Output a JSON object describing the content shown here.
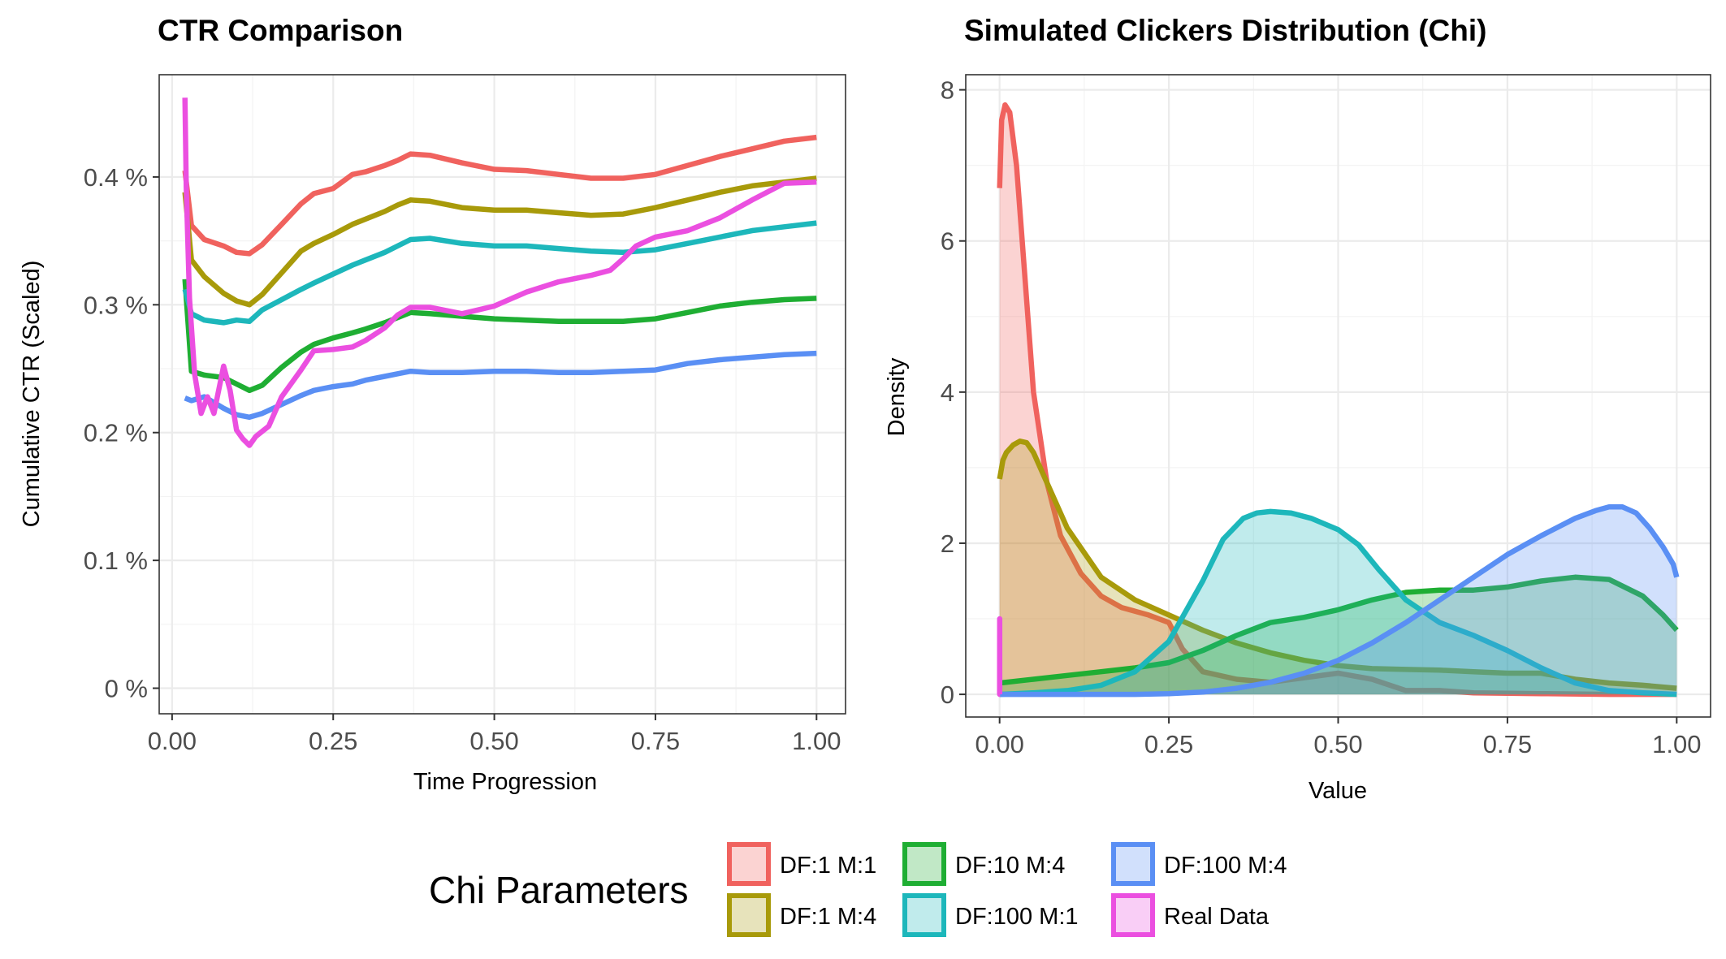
{
  "colors": {
    "DF:1 M:1": "#F0625E",
    "DF:1 M:4": "#A89A0A",
    "DF:10 M:4": "#1FAE33",
    "DF:100 M:1": "#1DB7BB",
    "DF:100 M:4": "#5A8FF4",
    "Real Data": "#EB4FE0"
  },
  "legend": {
    "title": "Chi Parameters",
    "entries": [
      "DF:1 M:1",
      "DF:1 M:4",
      "DF:10 M:4",
      "DF:100 M:1",
      "DF:100 M:4",
      "Real Data"
    ]
  },
  "chart_data": [
    {
      "type": "line",
      "title": "CTR Comparison",
      "xlabel": "Time Progression",
      "ylabel": "Cumulative CTR (Scaled)",
      "xlim": [
        -0.02,
        1.045
      ],
      "ylim": [
        -0.0002,
        0.0048
      ],
      "x_ticks": [
        0.0,
        0.25,
        0.5,
        0.75,
        1.0
      ],
      "x_tick_labels": [
        "0.00",
        "0.25",
        "0.50",
        "0.75",
        "1.00"
      ],
      "y_ticks": [
        0.0,
        0.001,
        0.002,
        0.003,
        0.004
      ],
      "y_tick_labels": [
        "0 %",
        "0.1 %",
        "0.2 %",
        "0.3 %",
        "0.4 %"
      ],
      "grid": true,
      "series": [
        {
          "name": "DF:1 M:1",
          "x": [
            0.02,
            0.03,
            0.05,
            0.08,
            0.1,
            0.12,
            0.14,
            0.17,
            0.2,
            0.22,
            0.25,
            0.28,
            0.3,
            0.33,
            0.35,
            0.37,
            0.4,
            0.45,
            0.5,
            0.55,
            0.6,
            0.65,
            0.7,
            0.75,
            0.8,
            0.85,
            0.9,
            0.95,
            1.0
          ],
          "y": [
            0.00405,
            0.00362,
            0.00351,
            0.00346,
            0.00341,
            0.0034,
            0.00347,
            0.00363,
            0.00379,
            0.00387,
            0.00391,
            0.00402,
            0.00404,
            0.00409,
            0.00413,
            0.00418,
            0.00417,
            0.00411,
            0.00406,
            0.00405,
            0.00402,
            0.00399,
            0.00399,
            0.00402,
            0.00409,
            0.00416,
            0.00422,
            0.00428,
            0.00431
          ]
        },
        {
          "name": "DF:1 M:4",
          "x": [
            0.02,
            0.03,
            0.05,
            0.08,
            0.1,
            0.12,
            0.14,
            0.17,
            0.2,
            0.22,
            0.25,
            0.28,
            0.3,
            0.33,
            0.35,
            0.37,
            0.4,
            0.45,
            0.5,
            0.55,
            0.6,
            0.65,
            0.7,
            0.75,
            0.8,
            0.85,
            0.9,
            0.95,
            1.0
          ],
          "y": [
            0.00388,
            0.00335,
            0.00322,
            0.00309,
            0.00303,
            0.003,
            0.00308,
            0.00325,
            0.00342,
            0.00348,
            0.00355,
            0.00363,
            0.00367,
            0.00373,
            0.00378,
            0.00382,
            0.00381,
            0.00376,
            0.00374,
            0.00374,
            0.00372,
            0.0037,
            0.00371,
            0.00376,
            0.00382,
            0.00388,
            0.00393,
            0.00396,
            0.00399
          ]
        },
        {
          "name": "DF:10 M:4",
          "x": [
            0.02,
            0.03,
            0.05,
            0.08,
            0.1,
            0.12,
            0.14,
            0.17,
            0.2,
            0.22,
            0.25,
            0.28,
            0.3,
            0.33,
            0.35,
            0.37,
            0.4,
            0.45,
            0.5,
            0.55,
            0.6,
            0.65,
            0.7,
            0.75,
            0.8,
            0.85,
            0.9,
            0.95,
            1.0
          ],
          "y": [
            0.0032,
            0.00248,
            0.00245,
            0.00243,
            0.00238,
            0.00233,
            0.00237,
            0.00251,
            0.00263,
            0.00269,
            0.00274,
            0.00278,
            0.00281,
            0.00286,
            0.0029,
            0.00294,
            0.00293,
            0.00291,
            0.00289,
            0.00288,
            0.00287,
            0.00287,
            0.00287,
            0.00289,
            0.00294,
            0.00299,
            0.00302,
            0.00304,
            0.00305
          ]
        },
        {
          "name": "DF:100 M:1",
          "x": [
            0.02,
            0.03,
            0.05,
            0.08,
            0.1,
            0.12,
            0.14,
            0.17,
            0.2,
            0.22,
            0.25,
            0.28,
            0.3,
            0.33,
            0.35,
            0.37,
            0.4,
            0.45,
            0.5,
            0.55,
            0.6,
            0.65,
            0.7,
            0.75,
            0.8,
            0.85,
            0.9,
            0.95,
            1.0
          ],
          "y": [
            0.00312,
            0.00293,
            0.00288,
            0.00286,
            0.00288,
            0.00287,
            0.00296,
            0.00304,
            0.00312,
            0.00317,
            0.00324,
            0.00331,
            0.00335,
            0.00341,
            0.00346,
            0.00351,
            0.00352,
            0.00348,
            0.00346,
            0.00346,
            0.00344,
            0.00342,
            0.00341,
            0.00343,
            0.00348,
            0.00353,
            0.00358,
            0.00361,
            0.00364
          ]
        },
        {
          "name": "DF:100 M:4",
          "x": [
            0.02,
            0.03,
            0.05,
            0.08,
            0.1,
            0.12,
            0.14,
            0.17,
            0.2,
            0.22,
            0.25,
            0.28,
            0.3,
            0.33,
            0.35,
            0.37,
            0.4,
            0.45,
            0.5,
            0.55,
            0.6,
            0.65,
            0.7,
            0.75,
            0.8,
            0.85,
            0.9,
            0.95,
            1.0
          ],
          "y": [
            0.00227,
            0.00225,
            0.00228,
            0.00219,
            0.00214,
            0.00212,
            0.00215,
            0.00222,
            0.00229,
            0.00233,
            0.00236,
            0.00238,
            0.00241,
            0.00244,
            0.00246,
            0.00248,
            0.00247,
            0.00247,
            0.00248,
            0.00248,
            0.00247,
            0.00247,
            0.00248,
            0.00249,
            0.00254,
            0.00257,
            0.00259,
            0.00261,
            0.00262
          ]
        },
        {
          "name": "Real Data",
          "x": [
            0.02,
            0.022,
            0.027,
            0.035,
            0.045,
            0.055,
            0.065,
            0.08,
            0.09,
            0.1,
            0.11,
            0.12,
            0.13,
            0.15,
            0.17,
            0.2,
            0.22,
            0.25,
            0.28,
            0.3,
            0.33,
            0.35,
            0.37,
            0.4,
            0.45,
            0.5,
            0.55,
            0.6,
            0.65,
            0.68,
            0.7,
            0.72,
            0.75,
            0.8,
            0.85,
            0.9,
            0.95,
            1.0
          ],
          "y": [
            0.00462,
            0.00392,
            0.00305,
            0.00246,
            0.00215,
            0.00228,
            0.00215,
            0.00252,
            0.00233,
            0.00202,
            0.00195,
            0.0019,
            0.00197,
            0.00205,
            0.00228,
            0.00249,
            0.00264,
            0.00265,
            0.00267,
            0.00272,
            0.00282,
            0.00292,
            0.00298,
            0.00298,
            0.00293,
            0.00299,
            0.0031,
            0.00318,
            0.00323,
            0.00327,
            0.00336,
            0.00346,
            0.00353,
            0.00358,
            0.00368,
            0.00382,
            0.00395,
            0.00396
          ]
        }
      ]
    },
    {
      "type": "area",
      "title": "Simulated Clickers Distribution (Chi)",
      "xlabel": "Value",
      "ylabel": "Density",
      "xlim": [
        -0.05,
        1.05
      ],
      "ylim": [
        -0.3,
        8.2
      ],
      "x_ticks": [
        0.0,
        0.25,
        0.5,
        0.75,
        1.0
      ],
      "x_tick_labels": [
        "0.00",
        "0.25",
        "0.50",
        "0.75",
        "1.00"
      ],
      "y_ticks": [
        0,
        2,
        4,
        6,
        8
      ],
      "y_tick_labels": [
        "0",
        "2",
        "4",
        "6",
        "8"
      ],
      "grid": true,
      "series": [
        {
          "name": "DF:1 M:1",
          "x": [
            0,
            0.003,
            0.008,
            0.015,
            0.025,
            0.035,
            0.05,
            0.07,
            0.09,
            0.12,
            0.15,
            0.18,
            0.2,
            0.22,
            0.25,
            0.27,
            0.3,
            0.35,
            0.4,
            0.45,
            0.5,
            0.55,
            0.6,
            0.65,
            0.7,
            0.8,
            0.9,
            1.0
          ],
          "y": [
            6.7,
            7.6,
            7.8,
            7.7,
            7.0,
            5.8,
            4.0,
            2.8,
            2.1,
            1.6,
            1.3,
            1.15,
            1.1,
            1.05,
            0.95,
            0.6,
            0.3,
            0.2,
            0.16,
            0.22,
            0.28,
            0.2,
            0.05,
            0.05,
            0.02,
            0.01,
            0.0,
            0.0
          ]
        },
        {
          "name": "DF:1 M:4",
          "x": [
            0,
            0.005,
            0.01,
            0.02,
            0.03,
            0.04,
            0.05,
            0.07,
            0.1,
            0.15,
            0.2,
            0.25,
            0.3,
            0.35,
            0.4,
            0.45,
            0.5,
            0.55,
            0.6,
            0.65,
            0.7,
            0.75,
            0.8,
            0.85,
            0.9,
            0.95,
            1.0
          ],
          "y": [
            2.85,
            3.1,
            3.2,
            3.3,
            3.35,
            3.33,
            3.2,
            2.8,
            2.2,
            1.55,
            1.25,
            1.05,
            0.85,
            0.68,
            0.55,
            0.45,
            0.38,
            0.34,
            0.33,
            0.32,
            0.3,
            0.28,
            0.28,
            0.2,
            0.15,
            0.12,
            0.08
          ]
        },
        {
          "name": "DF:10 M:4",
          "x": [
            0,
            0.05,
            0.1,
            0.15,
            0.2,
            0.25,
            0.3,
            0.35,
            0.4,
            0.45,
            0.5,
            0.55,
            0.6,
            0.65,
            0.7,
            0.75,
            0.8,
            0.85,
            0.9,
            0.95,
            0.98,
            1.0
          ],
          "y": [
            0.15,
            0.2,
            0.25,
            0.3,
            0.35,
            0.42,
            0.58,
            0.78,
            0.95,
            1.02,
            1.12,
            1.25,
            1.35,
            1.38,
            1.38,
            1.42,
            1.5,
            1.55,
            1.52,
            1.3,
            1.05,
            0.85
          ]
        },
        {
          "name": "DF:100 M:1",
          "x": [
            0,
            0.05,
            0.1,
            0.15,
            0.2,
            0.25,
            0.3,
            0.33,
            0.36,
            0.38,
            0.4,
            0.43,
            0.46,
            0.5,
            0.53,
            0.56,
            0.6,
            0.65,
            0.7,
            0.75,
            0.8,
            0.85,
            0.9,
            0.95,
            1.0
          ],
          "y": [
            0.0,
            0.02,
            0.05,
            0.12,
            0.3,
            0.7,
            1.5,
            2.05,
            2.33,
            2.4,
            2.42,
            2.4,
            2.33,
            2.18,
            1.98,
            1.65,
            1.25,
            0.95,
            0.78,
            0.58,
            0.35,
            0.15,
            0.05,
            0.02,
            0.0
          ]
        },
        {
          "name": "DF:100 M:4",
          "x": [
            0,
            0.2,
            0.25,
            0.3,
            0.35,
            0.4,
            0.45,
            0.5,
            0.55,
            0.6,
            0.65,
            0.7,
            0.75,
            0.8,
            0.85,
            0.88,
            0.9,
            0.92,
            0.94,
            0.96,
            0.98,
            0.995,
            1.0
          ],
          "y": [
            0.0,
            0.0,
            0.01,
            0.03,
            0.08,
            0.16,
            0.28,
            0.45,
            0.68,
            0.95,
            1.25,
            1.55,
            1.85,
            2.1,
            2.33,
            2.43,
            2.48,
            2.48,
            2.4,
            2.2,
            1.95,
            1.72,
            1.55
          ]
        },
        {
          "name": "Real Data",
          "x": [
            0,
            0.0001,
            0.0002,
            0.0004,
            0.0006,
            0.0008
          ],
          "y": [
            0.0,
            1.0,
            0.0,
            0.0,
            0.0,
            0.0
          ]
        }
      ]
    }
  ]
}
